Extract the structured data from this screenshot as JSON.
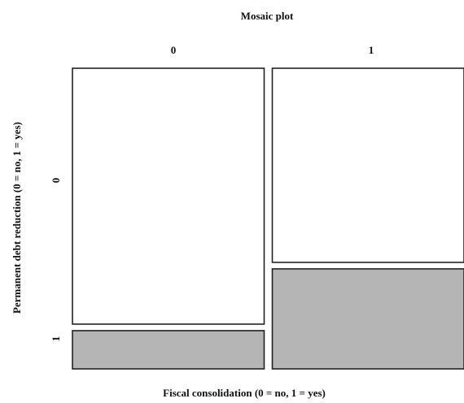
{
  "chart_data": {
    "type": "mosaic",
    "title": "Mosaic plot",
    "xlabel": "Fiscal consolidation (0 = no, 1 = yes)",
    "ylabel": "Permanent debt reduction (0 = no, 1 = yes)",
    "x_categories": [
      "0",
      "1"
    ],
    "y_categories": [
      "0",
      "1"
    ],
    "x_proportions": [
      0.5,
      0.5
    ],
    "conditional_proportions": [
      {
        "x": "0",
        "y0": 0.87,
        "y1": 0.13
      },
      {
        "x": "1",
        "y0": 0.66,
        "y1": 0.34
      }
    ],
    "colors": {
      "y0": "#ffffff",
      "y1": "#b5b5b5",
      "border": "#222222"
    }
  }
}
